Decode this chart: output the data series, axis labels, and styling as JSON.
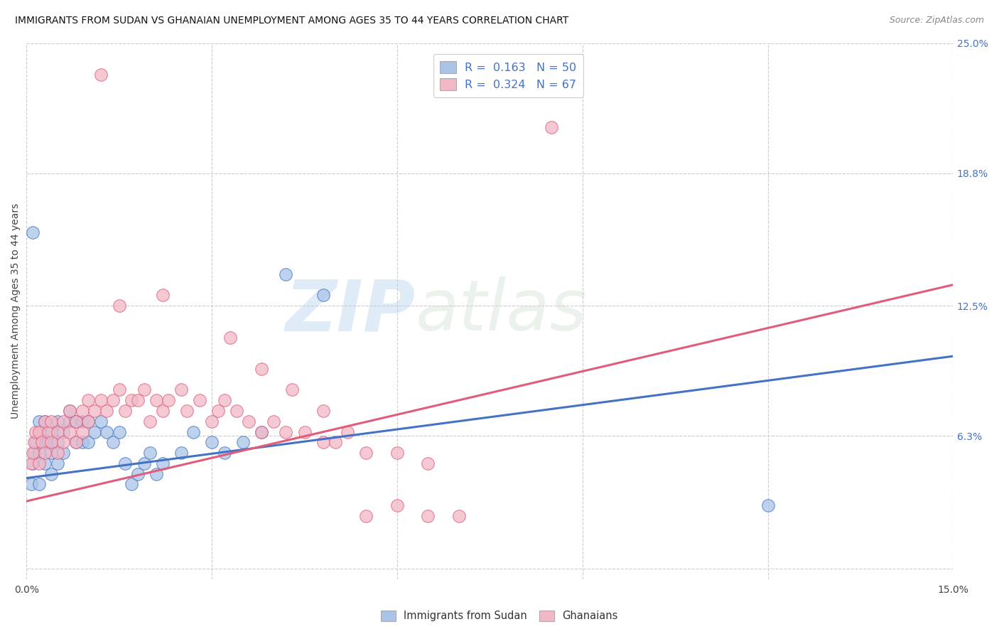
{
  "title": "IMMIGRANTS FROM SUDAN VS GHANAIAN UNEMPLOYMENT AMONG AGES 35 TO 44 YEARS CORRELATION CHART",
  "source": "Source: ZipAtlas.com",
  "ylabel": "Unemployment Among Ages 35 to 44 years",
  "color_blue": "#aac4e8",
  "color_pink": "#f2b8c6",
  "line_color_blue": "#4472c4",
  "line_color_pink": "#e05c7a",
  "background_color": "#ffffff",
  "watermark_zip": "ZIP",
  "watermark_atlas": "atlas",
  "xlim": [
    0.0,
    0.15
  ],
  "ylim": [
    -0.005,
    0.25
  ],
  "ytick_vals": [
    0.0,
    0.063,
    0.125,
    0.188,
    0.25
  ],
  "ytick_labels": [
    "",
    "6.3%",
    "12.5%",
    "18.8%",
    "25.0%"
  ],
  "xtick_vals": [
    0.0,
    0.03,
    0.06,
    0.09,
    0.12,
    0.15
  ],
  "xtick_labels": [
    "0.0%",
    "",
    "",
    "",
    "",
    "15.0%"
  ],
  "grid_color": "#cccccc",
  "sudan_line_x0": 0.0,
  "sudan_line_x1": 0.15,
  "sudan_line_y0": 0.043,
  "sudan_line_y1": 0.101,
  "ghana_line_x0": 0.0,
  "ghana_line_x1": 0.15,
  "ghana_line_y0": 0.032,
  "ghana_line_y1": 0.135,
  "sudan_x": [
    0.0008,
    0.001,
    0.0012,
    0.0015,
    0.002,
    0.002,
    0.002,
    0.0025,
    0.003,
    0.003,
    0.003,
    0.0035,
    0.004,
    0.004,
    0.004,
    0.005,
    0.005,
    0.005,
    0.006,
    0.006,
    0.007,
    0.007,
    0.008,
    0.008,
    0.009,
    0.009,
    0.01,
    0.01,
    0.011,
    0.012,
    0.013,
    0.014,
    0.015,
    0.016,
    0.017,
    0.018,
    0.019,
    0.02,
    0.021,
    0.022,
    0.025,
    0.027,
    0.03,
    0.032,
    0.035,
    0.038,
    0.042,
    0.048,
    0.12,
    0.001
  ],
  "sudan_y": [
    0.04,
    0.05,
    0.055,
    0.06,
    0.04,
    0.055,
    0.07,
    0.065,
    0.05,
    0.06,
    0.07,
    0.06,
    0.045,
    0.055,
    0.065,
    0.05,
    0.06,
    0.07,
    0.055,
    0.065,
    0.07,
    0.075,
    0.06,
    0.07,
    0.06,
    0.07,
    0.06,
    0.07,
    0.065,
    0.07,
    0.065,
    0.06,
    0.065,
    0.05,
    0.04,
    0.045,
    0.05,
    0.055,
    0.045,
    0.05,
    0.055,
    0.065,
    0.06,
    0.055,
    0.06,
    0.065,
    0.14,
    0.13,
    0.03,
    0.16
  ],
  "ghana_x": [
    0.0008,
    0.001,
    0.0012,
    0.0015,
    0.002,
    0.002,
    0.0025,
    0.003,
    0.003,
    0.0035,
    0.004,
    0.004,
    0.005,
    0.005,
    0.006,
    0.006,
    0.007,
    0.007,
    0.008,
    0.008,
    0.009,
    0.009,
    0.01,
    0.01,
    0.011,
    0.012,
    0.013,
    0.014,
    0.015,
    0.016,
    0.017,
    0.018,
    0.019,
    0.02,
    0.021,
    0.022,
    0.023,
    0.025,
    0.026,
    0.028,
    0.03,
    0.031,
    0.032,
    0.034,
    0.036,
    0.038,
    0.04,
    0.042,
    0.045,
    0.048,
    0.05,
    0.055,
    0.06,
    0.065,
    0.055,
    0.06,
    0.065,
    0.07,
    0.033,
    0.038,
    0.043,
    0.048,
    0.052,
    0.022,
    0.015,
    0.085,
    0.012
  ],
  "ghana_y": [
    0.05,
    0.055,
    0.06,
    0.065,
    0.05,
    0.065,
    0.06,
    0.055,
    0.07,
    0.065,
    0.06,
    0.07,
    0.055,
    0.065,
    0.06,
    0.07,
    0.065,
    0.075,
    0.06,
    0.07,
    0.065,
    0.075,
    0.07,
    0.08,
    0.075,
    0.08,
    0.075,
    0.08,
    0.085,
    0.075,
    0.08,
    0.08,
    0.085,
    0.07,
    0.08,
    0.075,
    0.08,
    0.085,
    0.075,
    0.08,
    0.07,
    0.075,
    0.08,
    0.075,
    0.07,
    0.065,
    0.07,
    0.065,
    0.065,
    0.06,
    0.06,
    0.055,
    0.055,
    0.05,
    0.025,
    0.03,
    0.025,
    0.025,
    0.11,
    0.095,
    0.085,
    0.075,
    0.065,
    0.13,
    0.125,
    0.21,
    0.235
  ]
}
